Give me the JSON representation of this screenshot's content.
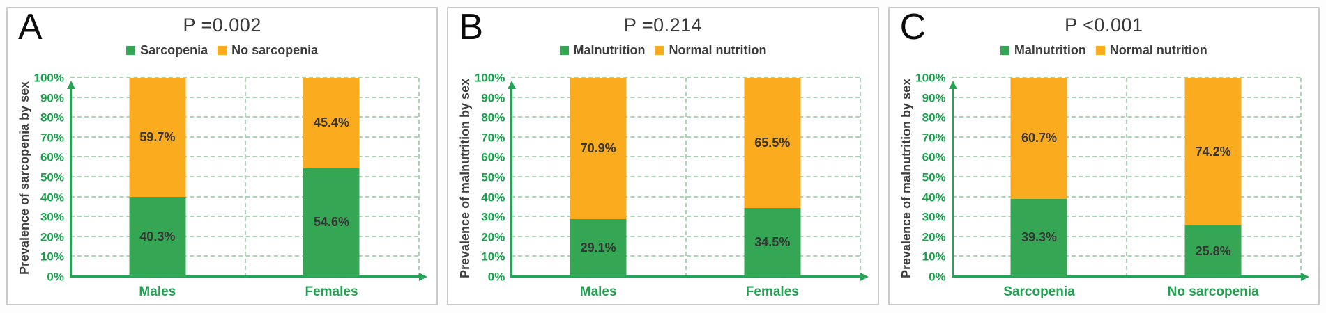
{
  "colors": {
    "green": "#35a754",
    "orange": "#fbab1e",
    "axis_green": "#27a355",
    "tick_label_green": "#16a04b",
    "category_label_green": "#1fa24f",
    "gridline": "#abd3b5",
    "value_label": "#363636",
    "title_text": "#3a3a3a",
    "panel_border": "#cbcbcb"
  },
  "chart_data": [
    {
      "type": "bar",
      "stacked": true,
      "panel_letter": "A",
      "title": "P =0.002",
      "ylabel": "Prevalence of sarcopenia by sex",
      "xlabel": "",
      "ylim": [
        0,
        100
      ],
      "ytick_step": 10,
      "ytick_suffix": "%",
      "grid": true,
      "legend_position": "top",
      "categories": [
        "Males",
        "Females"
      ],
      "series": [
        {
          "name": "Sarcopenia",
          "color_key": "green",
          "values": [
            40.3,
            54.6
          ]
        },
        {
          "name": "No sarcopenia",
          "color_key": "orange",
          "values": [
            59.7,
            45.4
          ]
        }
      ],
      "value_labels": [
        [
          "40.3%",
          "54.6%"
        ],
        [
          "59.7%",
          "45.4%"
        ]
      ]
    },
    {
      "type": "bar",
      "stacked": true,
      "panel_letter": "B",
      "title": "P =0.214",
      "ylabel": "Prevalence of malnutrition by sex",
      "xlabel": "",
      "ylim": [
        0,
        100
      ],
      "ytick_step": 10,
      "ytick_suffix": "%",
      "grid": true,
      "legend_position": "top",
      "categories": [
        "Males",
        "Females"
      ],
      "series": [
        {
          "name": "Malnutrition",
          "color_key": "green",
          "values": [
            29.1,
            34.5
          ]
        },
        {
          "name": "Normal nutrition",
          "color_key": "orange",
          "values": [
            70.9,
            65.5
          ]
        }
      ],
      "value_labels": [
        [
          "29.1%",
          "34.5%"
        ],
        [
          "70.9%",
          "65.5%"
        ]
      ]
    },
    {
      "type": "bar",
      "stacked": true,
      "panel_letter": "C",
      "title": "P <0.001",
      "ylabel": "Prevalence of malnutrition by sex",
      "xlabel": "",
      "ylim": [
        0,
        100
      ],
      "ytick_step": 10,
      "ytick_suffix": "%",
      "grid": true,
      "legend_position": "top",
      "categories": [
        "Sarcopenia",
        "No sarcopenia"
      ],
      "series": [
        {
          "name": "Malnutrition",
          "color_key": "green",
          "values": [
            39.3,
            25.8
          ]
        },
        {
          "name": "Normal nutrition",
          "color_key": "orange",
          "values": [
            60.7,
            74.2
          ]
        }
      ],
      "value_labels": [
        [
          "39.3%",
          "25.8%"
        ],
        [
          "60.7%",
          "74.2%"
        ]
      ]
    }
  ]
}
